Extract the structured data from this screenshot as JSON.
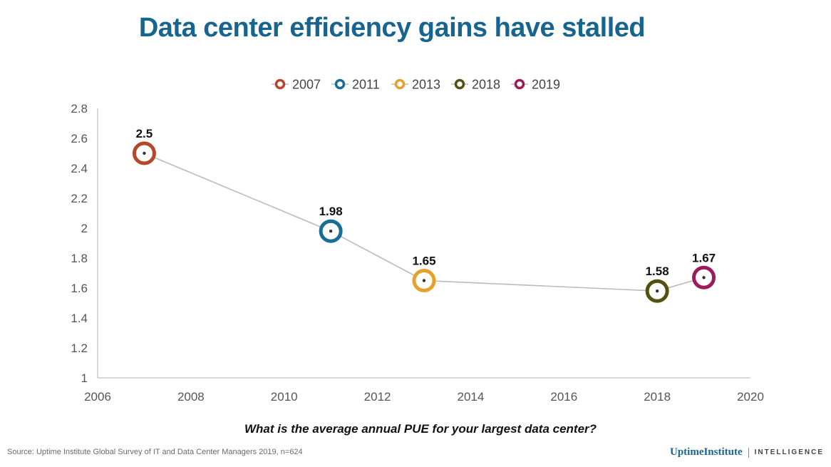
{
  "chart_data": {
    "type": "line",
    "title": "Data center efficiency gains have stalled",
    "xlabel": "What is the average annual PUE for your largest data center?",
    "ylabel": "",
    "xlim": [
      2006,
      2020
    ],
    "ylim": [
      1,
      2.8
    ],
    "x_ticks": [
      2006,
      2008,
      2010,
      2012,
      2014,
      2016,
      2018,
      2020
    ],
    "y_ticks": [
      1,
      1.2,
      1.4,
      1.6,
      1.8,
      2,
      2.2,
      2.4,
      2.6,
      2.8
    ],
    "grid": false,
    "legend_position": "top-center",
    "line_color": "#bbbbbb",
    "points": [
      {
        "name": "2007",
        "x": 2007,
        "y": 2.5,
        "label": "2.5",
        "color": "#b5472a"
      },
      {
        "name": "2011",
        "x": 2011,
        "y": 1.98,
        "label": "1.98",
        "color": "#1a6e96"
      },
      {
        "name": "2013",
        "x": 2013,
        "y": 1.65,
        "label": "1.65",
        "color": "#e8a02c"
      },
      {
        "name": "2018",
        "x": 2018,
        "y": 1.58,
        "label": "1.58",
        "color": "#54500f"
      },
      {
        "name": "2019",
        "x": 2019,
        "y": 1.67,
        "label": "1.67",
        "color": "#9c1b5a"
      }
    ]
  },
  "footer": {
    "source": "Source: Uptime Institute Global Survey of IT and Data Center Managers 2019, n=624",
    "brand_name": "UptimeInstitute",
    "brand_tag": "INTELLIGENCE"
  },
  "colors": {
    "title": "#17658f",
    "axis": "#cccccc"
  }
}
